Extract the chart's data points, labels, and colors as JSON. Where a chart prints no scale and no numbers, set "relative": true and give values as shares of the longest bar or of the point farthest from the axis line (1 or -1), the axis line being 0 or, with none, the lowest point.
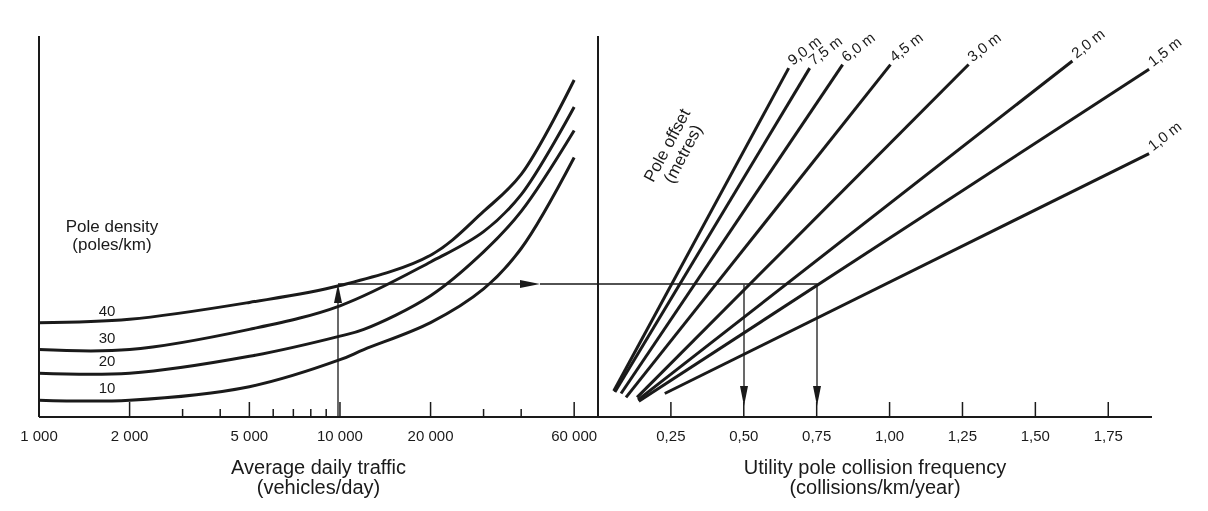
{
  "chart_data": [
    {
      "type": "line",
      "relative": true,
      "log": "x",
      "xlabel": "Average daily traffic\n(vehicles/day)",
      "legend_title": "Pole density\n(poles/km)",
      "xlim": [
        1000,
        72000
      ],
      "xticks": [
        {
          "value": 1000,
          "label": "1 000"
        },
        {
          "value": 2000,
          "label": "2 000"
        },
        {
          "value": 3000,
          "label": null
        },
        {
          "value": 4000,
          "label": null
        },
        {
          "value": 5000,
          "label": "5 000"
        },
        {
          "value": 6000,
          "label": null
        },
        {
          "value": 7000,
          "label": null
        },
        {
          "value": 8000,
          "label": null
        },
        {
          "value": 9000,
          "label": null
        },
        {
          "value": 10000,
          "label": "10 000"
        },
        {
          "value": 20000,
          "label": "20 000"
        },
        {
          "value": 30000,
          "label": null
        },
        {
          "value": 40000,
          "label": null
        },
        {
          "value": 60000,
          "label": "60 000"
        }
      ],
      "series": [
        {
          "name": "40",
          "color": "#1a1a1a",
          "x": [
            1000,
            2000,
            5000,
            10000,
            20000,
            30000,
            40000,
            60000
          ],
          "values": [
            0.28,
            0.29,
            0.34,
            0.39,
            0.48,
            0.61,
            0.72,
            1
          ]
        },
        {
          "name": "30",
          "color": "#1a1a1a",
          "x": [
            1000,
            2000,
            5000,
            10000,
            20000,
            30000,
            40000,
            60000
          ],
          "values": [
            0.2,
            0.2,
            0.26,
            0.33,
            0.46,
            0.55,
            0.66,
            0.92
          ]
        },
        {
          "name": "20",
          "color": "#1a1a1a",
          "x": [
            1000,
            2000,
            5000,
            10000,
            12000,
            20000,
            30000,
            40000,
            60000
          ],
          "values": [
            0.13,
            0.13,
            0.18,
            0.24,
            0.26,
            0.36,
            0.49,
            0.61,
            0.85
          ]
        },
        {
          "name": "10",
          "color": "#1a1a1a",
          "x": [
            1000,
            2000,
            5000,
            10000,
            12000,
            20000,
            30000,
            40000,
            60000
          ],
          "values": [
            0.05,
            0.05,
            0.09,
            0.17,
            0.2,
            0.28,
            0.38,
            0.5,
            0.77
          ]
        }
      ]
    },
    {
      "type": "line",
      "relative": true,
      "xlabel": "Utility pole collision frequency\n(collisions/km/year)",
      "legend_title": "Pole offset\n(metres)",
      "xlim": [
        0,
        1.9
      ],
      "xticks": [
        {
          "value": 0.25,
          "label": "0,25"
        },
        {
          "value": 0.5,
          "label": "0,50"
        },
        {
          "value": 0.75,
          "label": "0,75"
        },
        {
          "value": 1,
          "label": "1,00"
        },
        {
          "value": 1.25,
          "label": "1,25"
        },
        {
          "value": 1.5,
          "label": "1,50"
        },
        {
          "value": 1.75,
          "label": "1,75"
        }
      ],
      "series": [
        {
          "name": "9,0 m",
          "color": "#1a1a1a",
          "x": [
            0.054,
            0.654
          ],
          "values": [
            0.073,
            0.98
          ]
        },
        {
          "name": "7,5 m",
          "color": "#1a1a1a",
          "x": [
            0.058,
            0.726
          ],
          "values": [
            0.07,
            0.98
          ]
        },
        {
          "name": "6,0 m",
          "color": "#1a1a1a",
          "x": [
            0.079,
            0.839
          ],
          "values": [
            0.066,
            0.99
          ]
        },
        {
          "name": "4,5 m",
          "color": "#1a1a1a",
          "x": [
            0.096,
            1.003
          ],
          "values": [
            0.055,
            0.99
          ]
        },
        {
          "name": "3,0 m",
          "color": "#1a1a1a",
          "x": [
            0.134,
            1.271
          ],
          "values": [
            0.055,
            0.99
          ]
        },
        {
          "name": "2,0 m",
          "color": "#1a1a1a",
          "x": [
            0.137,
            1.627
          ],
          "values": [
            0.048,
            1
          ]
        },
        {
          "name": "1,5 m",
          "color": "#1a1a1a",
          "x": [
            0.14,
            1.89
          ],
          "values": [
            0.044,
            0.977
          ]
        },
        {
          "name": "1,0 m",
          "color": "#1a1a1a",
          "x": [
            0.229,
            1.89
          ],
          "values": [
            0.066,
            0.74
          ]
        }
      ]
    }
  ]
}
